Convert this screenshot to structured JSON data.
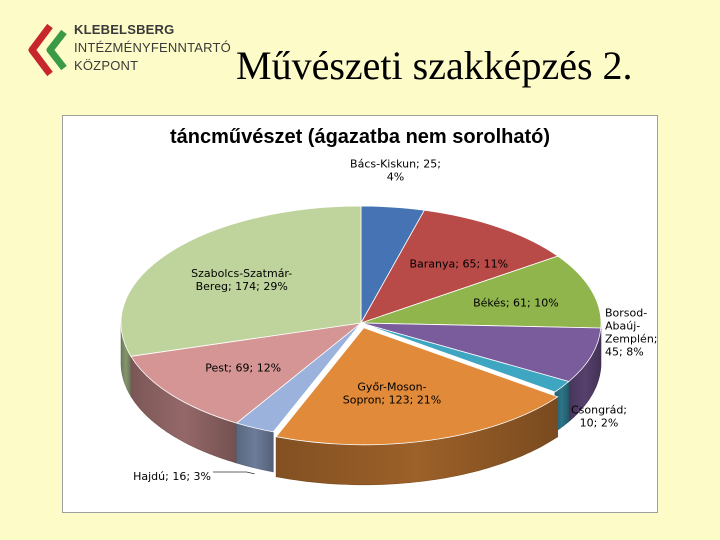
{
  "logo": {
    "line1": "KLEBELSBERG",
    "line2": "INTÉZMÉNYFENNTARTÓ",
    "line3": "KÖZPONT",
    "colors": {
      "red": "#c8262d",
      "green": "#3a9a46",
      "gray": "#7a7a7a"
    }
  },
  "slide_title": "Művészeti szakképzés 2.",
  "chart_data": {
    "type": "pie",
    "title": "táncművészet (ágazatba nem sorolható)",
    "slices": [
      {
        "name": "Bács-Kiskun",
        "value": 25,
        "percent": 4,
        "color": "#4573b4",
        "label_lines": [
          "Bács-Kiskun; 25;",
          "4%"
        ]
      },
      {
        "name": "Baranya",
        "value": 65,
        "percent": 11,
        "color": "#b84a47",
        "label_lines": [
          "Baranya; 65; 11%"
        ]
      },
      {
        "name": "Békés",
        "value": 61,
        "percent": 10,
        "color": "#90b54c",
        "label_lines": [
          "Békés; 61; 10%"
        ]
      },
      {
        "name": "Borsod-Abaúj-Zemplén",
        "value": 45,
        "percent": 8,
        "color": "#7a5b9b",
        "label_lines": [
          "Borsod-",
          "Abaúj-",
          "Zemplén;",
          "45; 8%"
        ]
      },
      {
        "name": "Csongrád",
        "value": 10,
        "percent": 2,
        "color": "#3fa6c2",
        "label_lines": [
          "Csongrád;",
          "10; 2%"
        ]
      },
      {
        "name": "Győr-Moson-Sopron",
        "value": 123,
        "percent": 21,
        "color": "#e08a3a",
        "label_lines": [
          "Győr-Moson-",
          "Sopron; 123; 21%"
        ]
      },
      {
        "name": "Hajdú",
        "value": 16,
        "percent": 3,
        "color": "#9ab2dc",
        "label_lines": [
          "Hajdú; 16; 3%"
        ]
      },
      {
        "name": "Pest",
        "value": 69,
        "percent": 12,
        "color": "#d49594",
        "label_lines": [
          "Pest; 69; 12%"
        ]
      },
      {
        "name": "Szabolcs-Szatmár-Bereg",
        "value": 174,
        "percent": 29,
        "color": "#bfd49d",
        "label_lines": [
          "Szabolcs-Szatmár-",
          "Bereg; 174; 29%"
        ]
      }
    ],
    "legend": "none",
    "style": "3d-tilted"
  }
}
